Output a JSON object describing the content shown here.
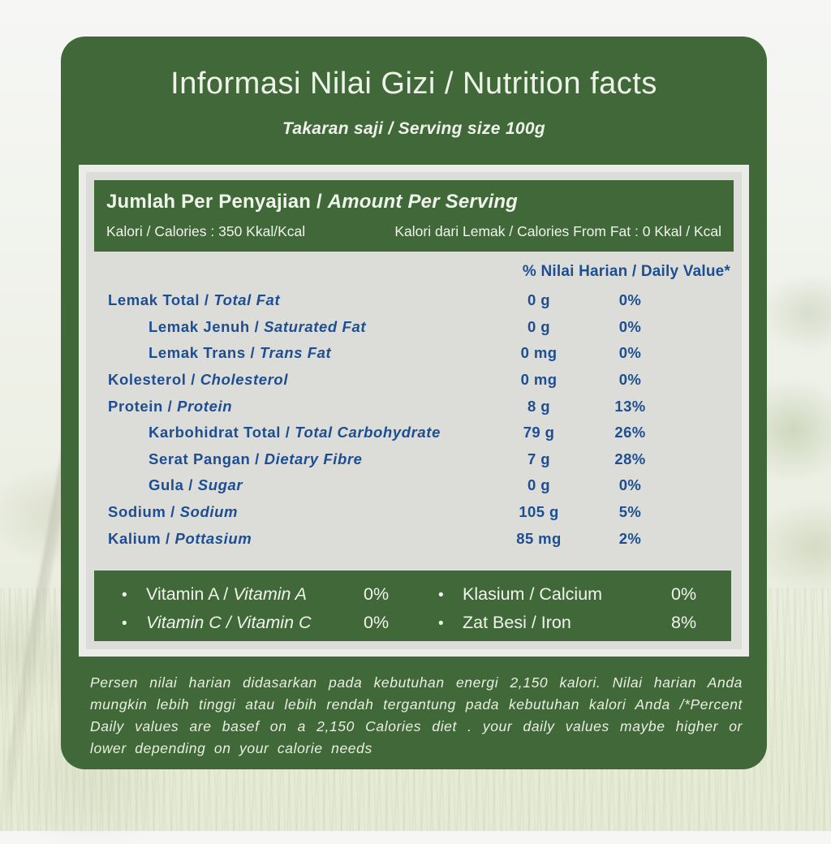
{
  "card": {
    "title": "Informasi Nilai Gizi / Nutrition facts",
    "subtitle": "Takaran saji / Serving size 100g"
  },
  "serving_header": {
    "title_id": "Jumlah Per Penyajian /",
    "title_en": "Amount Per Serving",
    "calories": "Kalori / Calories : 350 Kkal/Kcal",
    "calories_from_fat": "Kalori dari Lemak / Calories From Fat : 0 Kkal / Kcal"
  },
  "table": {
    "daily_value_header": "% Nilai Harian / Daily Value*",
    "rows": [
      {
        "label_id": "Lemak Total /",
        "label_en": "Total Fat",
        "amount": "0 g",
        "dv": "0%",
        "indent": false
      },
      {
        "label_id": "Lemak Jenuh /",
        "label_en": "Saturated Fat",
        "amount": "0 g",
        "dv": "0%",
        "indent": true
      },
      {
        "label_id": "Lemak Trans /",
        "label_en": "Trans Fat",
        "amount": "0 mg",
        "dv": "0%",
        "indent": true
      },
      {
        "label_id": "Kolesterol /",
        "label_en": "Cholesterol",
        "amount": "0 mg",
        "dv": "0%",
        "indent": false
      },
      {
        "label_id": "Protein /",
        "label_en": "Protein",
        "amount": "8 g",
        "dv": "13%",
        "indent": false
      },
      {
        "label_id": "Karbohidrat Total /",
        "label_en": "Total Carbohydrate",
        "amount": "79 g",
        "dv": "26%",
        "indent": true
      },
      {
        "label_id": "Serat Pangan /",
        "label_en": "Dietary Fibre",
        "amount": "7 g",
        "dv": "28%",
        "indent": true
      },
      {
        "label_id": "Gula /",
        "label_en": "Sugar",
        "amount": "0 g",
        "dv": "0%",
        "indent": true
      },
      {
        "label_id": "Sodium /",
        "label_en": "Sodium",
        "amount": "105 g",
        "dv": "5%",
        "indent": false
      },
      {
        "label_id": "Kalium /",
        "label_en": "Pottasium",
        "amount": "85 mg",
        "dv": "2%",
        "indent": false
      }
    ]
  },
  "micronutrients": {
    "left": [
      {
        "label_id": "Vitamin A /",
        "label_en": "Vitamin A",
        "value": "0%",
        "italic_id": false,
        "italic_en": true
      },
      {
        "label_id": "Vitamin C /",
        "label_en": "Vitamin C",
        "value": "0%",
        "italic_id": true,
        "italic_en": true
      }
    ],
    "right": [
      {
        "label_id": "Klasium /",
        "label_en": "Calcium",
        "value": "0%",
        "italic_id": false,
        "italic_en": false
      },
      {
        "label_id": "Zat Besi /",
        "label_en": "Iron",
        "value": "8%",
        "italic_id": false,
        "italic_en": false
      }
    ],
    "bullet": "•"
  },
  "footnote": "Persen nilai harian didasarkan pada kebutuhan energi 2,150 kalori. Nilai harian Anda mungkin lebih tinggi atau lebih rendah tergantung pada kebutuhan kalori Anda /*Percent Daily values are basef on a 2,150 Calories diet . your daily values maybe higher or lower depending on your calorie needs",
  "colors": {
    "card_green": "#406839",
    "panel_gray": "#dcddd9",
    "panel_border": "#ebece8",
    "text_blue": "#1e4e92",
    "text_offwhite": "#eef3e9"
  }
}
